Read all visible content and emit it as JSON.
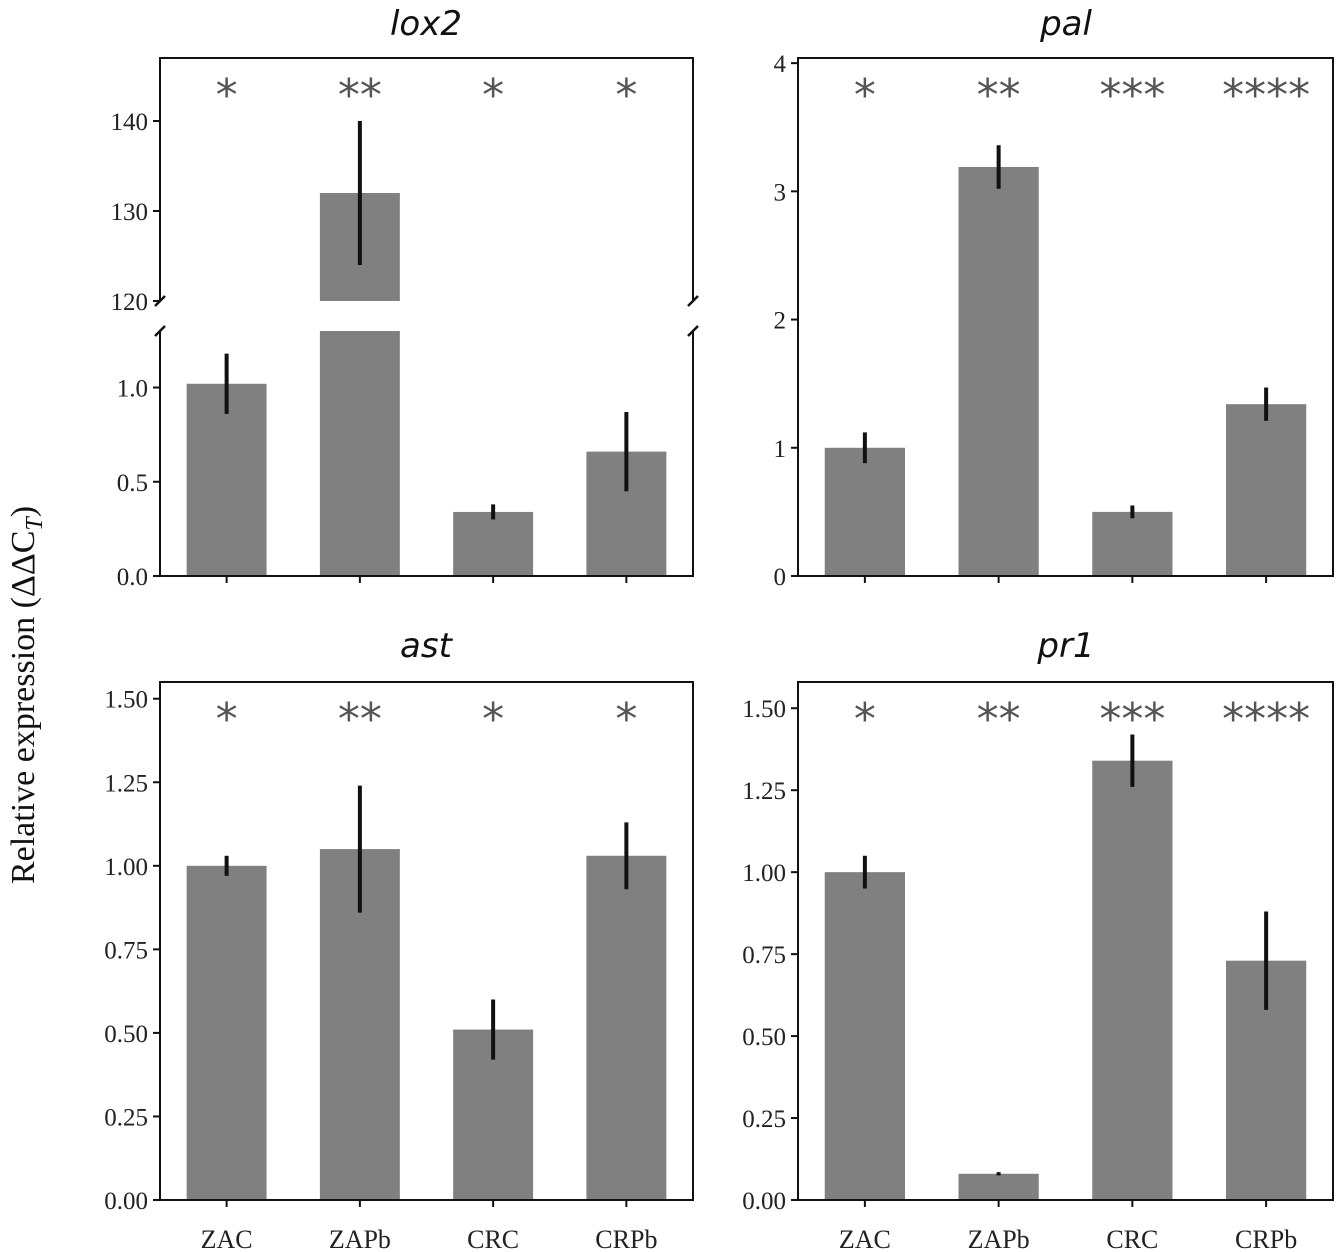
{
  "ylabel": "Relative expression (ΔΔC",
  "ylabel_sub": "T",
  "ylabel_close": ")",
  "colors": {
    "bar": "#808080",
    "error": "#111111",
    "star": "#555555",
    "axis": "#111111"
  },
  "chart_data": [
    {
      "id": "lox2",
      "type": "bar",
      "title": "lox2",
      "categories": [
        "ZAC",
        "ZAPb",
        "CRC",
        "CRPb"
      ],
      "values": [
        1.02,
        132,
        0.34,
        0.66
      ],
      "errors": [
        0.16,
        8,
        0.04,
        0.21
      ],
      "significance": [
        "*",
        "**",
        "*",
        "*"
      ],
      "broken_axis": true,
      "lower_ylim": [
        0,
        1.3
      ],
      "lower_ticks": [
        0.0,
        0.5,
        1.0
      ],
      "lower_tick_labels": [
        "0.0",
        "0.5",
        "1.0"
      ],
      "upper_ylim": [
        120,
        147
      ],
      "upper_ticks": [
        120,
        130,
        140
      ],
      "upper_tick_labels": [
        "120",
        "130",
        "140"
      ]
    },
    {
      "id": "pal",
      "type": "bar",
      "title": "pal",
      "categories": [
        "ZAC",
        "ZAPb",
        "CRC",
        "CRPb"
      ],
      "values": [
        1.0,
        3.19,
        0.5,
        1.34
      ],
      "errors": [
        0.12,
        0.17,
        0.05,
        0.13
      ],
      "significance": [
        "*",
        "**",
        "***",
        "****"
      ],
      "ylim": [
        0,
        4.04
      ],
      "ticks": [
        0,
        1,
        2,
        3,
        4
      ],
      "tick_labels": [
        "0",
        "1",
        "2",
        "3",
        "4"
      ]
    },
    {
      "id": "ast",
      "type": "bar",
      "title": "ast",
      "categories": [
        "ZAC",
        "ZAPb",
        "CRC",
        "CRPb"
      ],
      "values": [
        1.0,
        1.05,
        0.51,
        1.03
      ],
      "errors": [
        0.03,
        0.19,
        0.09,
        0.1
      ],
      "significance": [
        "*",
        "**",
        "*",
        "*"
      ],
      "ylim": [
        0,
        1.55
      ],
      "ticks": [
        0,
        0.25,
        0.5,
        0.75,
        1.0,
        1.25,
        1.5
      ],
      "tick_labels": [
        "0.00",
        "0.25",
        "0.50",
        "0.75",
        "1.00",
        "1.25",
        "1.50"
      ]
    },
    {
      "id": "pr1",
      "type": "bar",
      "title": "pr1",
      "categories": [
        "ZAC",
        "ZAPb",
        "CRC",
        "CRPb"
      ],
      "values": [
        1.0,
        0.08,
        1.34,
        0.73
      ],
      "errors": [
        0.05,
        0.005,
        0.08,
        0.15
      ],
      "significance": [
        "*",
        "**",
        "***",
        "****"
      ],
      "ylim": [
        0,
        1.58
      ],
      "ticks": [
        0,
        0.25,
        0.5,
        0.75,
        1.0,
        1.25,
        1.5
      ],
      "tick_labels": [
        "0.00",
        "0.25",
        "0.50",
        "0.75",
        "1.00",
        "1.25",
        "1.50"
      ]
    }
  ]
}
